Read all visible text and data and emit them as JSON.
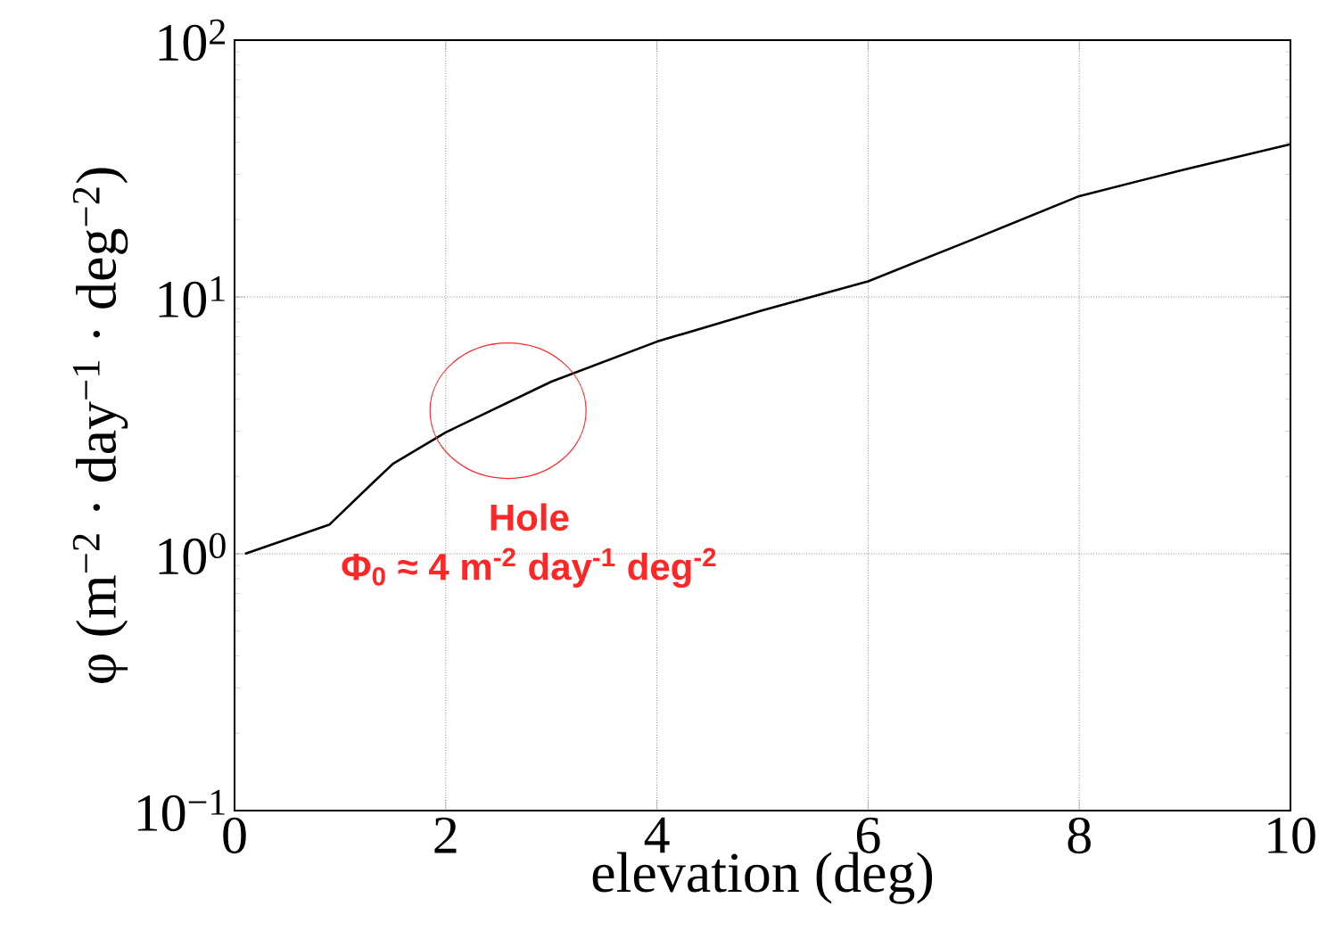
{
  "chart_data": {
    "type": "line",
    "xlabel": "elevation (deg)",
    "ylabel": "φ (m$^{−2}$ · day$^{−1}$ · deg$^{−2}$)",
    "x": [
      0.1,
      0.9,
      1.28,
      1.5,
      2,
      3,
      4,
      5,
      6,
      7,
      8,
      9,
      10
    ],
    "series": [
      {
        "color": "#000000",
        "values": [
          1.0,
          1.3,
          1.84,
          2.24,
          2.97,
          4.68,
          6.7,
          8.87,
          11.5,
          16.8,
          24.7,
          31.4,
          39.3
        ]
      }
    ],
    "log": "y",
    "xlim": [
      0,
      10
    ],
    "ylim": [
      0.1,
      100
    ],
    "xticks": [
      0,
      2,
      4,
      6,
      8,
      10
    ],
    "yticks": [
      {
        "value": 0.1,
        "label": "10$^{−1}$"
      },
      {
        "value": 1,
        "label": "10$^{0}$"
      },
      {
        "value": 10,
        "label": "10$^{1}$"
      },
      {
        "value": 100,
        "label": "10$^{2}$"
      }
    ],
    "grid": true,
    "marker": "none",
    "line_style": "solid",
    "annotations": [
      "Hole",
      "Φ$_{0}$ ≈ 4 m$^{-2}$ day$^{-1}$ deg$^{-2}$"
    ]
  }
}
